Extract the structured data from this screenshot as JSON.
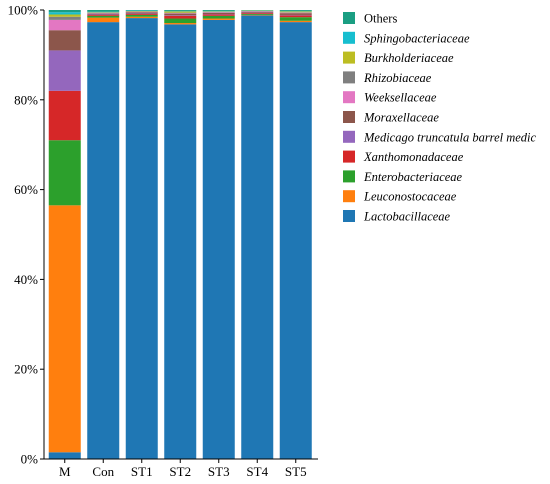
{
  "chart_data": {
    "type": "bar",
    "stacked": true,
    "categories": [
      "M",
      "Con",
      "ST1",
      "ST2",
      "ST3",
      "ST4",
      "ST5"
    ],
    "ylim": [
      0,
      100
    ],
    "yticks": [
      "0%",
      "20%",
      "40%",
      "60%",
      "80%",
      "100%"
    ],
    "grid": false,
    "legend_position": "right",
    "series": [
      {
        "name": "Lactobacillaceae",
        "color": "#1f77b4",
        "values": [
          1.5,
          97.3,
          98.2,
          96.8,
          97.8,
          98.8,
          97.3
        ]
      },
      {
        "name": "Leuconostocaceae",
        "color": "#ff7f0e",
        "values": [
          55.0,
          1.0,
          0.3,
          0.3,
          0.3,
          0.1,
          0.3
        ]
      },
      {
        "name": "Enterobacteriaceae",
        "color": "#2ca02c",
        "values": [
          14.5,
          0.4,
          0.4,
          1.0,
          0.6,
          0.2,
          0.8
        ]
      },
      {
        "name": "Xanthomonadaceae",
        "color": "#d62728",
        "values": [
          11.0,
          0.2,
          0.2,
          0.6,
          0.3,
          0.2,
          0.4
        ]
      },
      {
        "name": "Medicago truncatula barrel medic",
        "color": "#9467bd",
        "values": [
          9.0,
          0.1,
          0.1,
          0.1,
          0.1,
          0.1,
          0.1
        ]
      },
      {
        "name": "Moraxellaceae",
        "color": "#8c564b",
        "values": [
          4.5,
          0.2,
          0.3,
          0.4,
          0.3,
          0.2,
          0.4
        ]
      },
      {
        "name": "Weeksellaceae",
        "color": "#e377c2",
        "values": [
          2.3,
          0.1,
          0.1,
          0.1,
          0.1,
          0.1,
          0.1
        ]
      },
      {
        "name": "Rhizobiaceae",
        "color": "#7f7f7f",
        "values": [
          0.7,
          0.1,
          0.1,
          0.1,
          0.1,
          0.1,
          0.1
        ]
      },
      {
        "name": "Burkholderiaceae",
        "color": "#bcbd22",
        "values": [
          0.5,
          0.1,
          0.1,
          0.3,
          0.1,
          0.1,
          0.2
        ]
      },
      {
        "name": "Sphingobacteriaceae",
        "color": "#17becf",
        "values": [
          0.5,
          0.1,
          0.1,
          0.1,
          0.1,
          0.1,
          0.1
        ]
      },
      {
        "name": "Others",
        "color": "#1a9e82",
        "values": [
          0.5,
          0.4,
          0.1,
          0.2,
          0.2,
          0.0,
          0.2
        ]
      }
    ]
  }
}
